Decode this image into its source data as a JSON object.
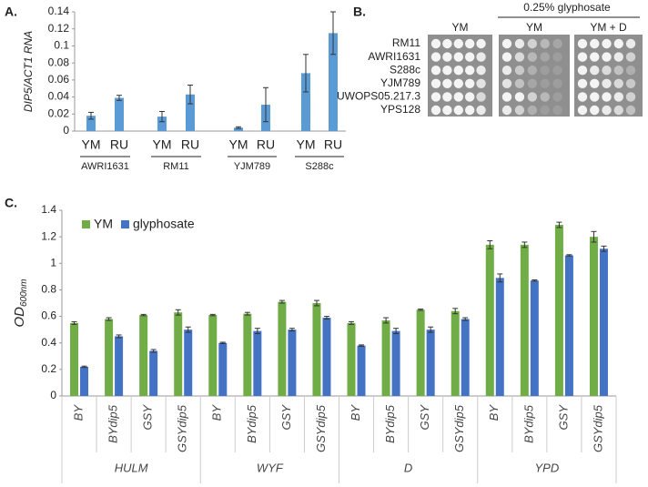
{
  "chart_data": [
    {
      "type": "bar",
      "panel": "A.",
      "ylabel": "DIP5/ACT1 RNA",
      "categories": [
        "YM",
        "RU",
        "YM",
        "RU",
        "YM",
        "RU",
        "YM",
        "RU"
      ],
      "groups": [
        "AWRI1631",
        "RM11",
        "YJM789",
        "S288c"
      ],
      "values": [
        0.018,
        0.039,
        0.017,
        0.043,
        0.004,
        0.031,
        0.068,
        0.115
      ],
      "errors": [
        0.004,
        0.003,
        0.006,
        0.011,
        0.001,
        0.02,
        0.022,
        0.025
      ],
      "color": "#5b9bd5",
      "ylim": [
        0,
        0.14
      ],
      "yticks": [
        0,
        0.02,
        0.04,
        0.06,
        0.08,
        0.1,
        0.12,
        0.14
      ]
    },
    {
      "type": "grouped_bar",
      "panel": "C.",
      "ylabel": "OD",
      "ylabel_sub": "600nm",
      "categories": [
        "BY",
        "BYdip5",
        "GSY",
        "GSYdip5",
        "BY",
        "BYdip5",
        "GSY",
        "GSYdip5",
        "BY",
        "BYdip5",
        "GSY",
        "GSYdip5",
        "BY",
        "BYdip5",
        "GSY",
        "GSYdip5"
      ],
      "groups": [
        "HULM",
        "WYF",
        "D",
        "YPD"
      ],
      "series": [
        {
          "name": "YM",
          "color": "#70ad47",
          "values": [
            0.55,
            0.58,
            0.61,
            0.63,
            0.61,
            0.62,
            0.71,
            0.7,
            0.55,
            0.57,
            0.65,
            0.64,
            1.14,
            1.14,
            1.29,
            1.2
          ],
          "errors": [
            0.01,
            0.01,
            0.005,
            0.02,
            0.005,
            0.01,
            0.01,
            0.02,
            0.01,
            0.02,
            0.005,
            0.02,
            0.03,
            0.02,
            0.02,
            0.04
          ]
        },
        {
          "name": "glyphosate",
          "color": "#4472c4",
          "values": [
            0.22,
            0.45,
            0.34,
            0.5,
            0.4,
            0.49,
            0.5,
            0.59,
            0.38,
            0.49,
            0.5,
            0.58,
            0.89,
            0.87,
            1.06,
            1.11
          ],
          "errors": [
            0.005,
            0.01,
            0.01,
            0.02,
            0.005,
            0.02,
            0.01,
            0.01,
            0.005,
            0.02,
            0.02,
            0.01,
            0.03,
            0.005,
            0.005,
            0.02
          ]
        }
      ],
      "legend": "top-left",
      "ylim": [
        0,
        1.4
      ],
      "yticks": [
        0,
        0.2,
        0.4,
        0.6,
        0.8,
        1,
        1.2,
        1.4
      ]
    }
  ],
  "spot_assay": {
    "panel": "B.",
    "treatment": "0.25% glyphosate",
    "plate_headers": [
      "YM",
      "YM",
      "YM + D"
    ],
    "strains": [
      "RM11",
      "AWRI1631",
      "S288c",
      "YJM789",
      "UWOPS05.217.3",
      "YPS128"
    ]
  }
}
